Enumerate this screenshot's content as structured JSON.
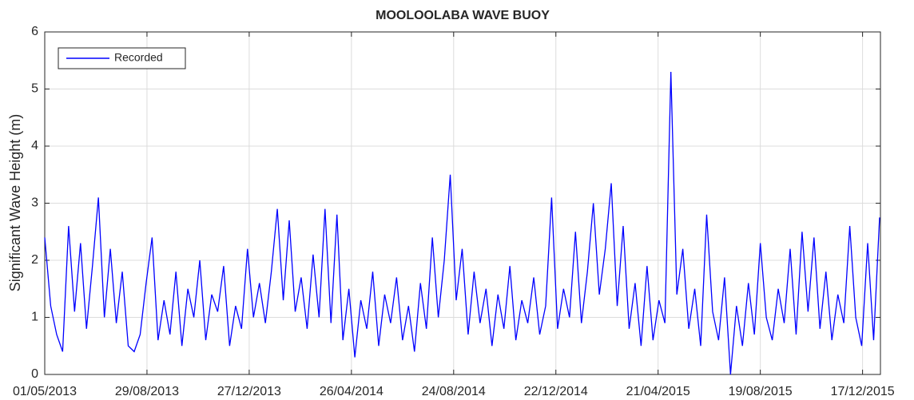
{
  "chart_data": {
    "type": "line",
    "title": "MOOLOOLABA WAVE BUOY",
    "y_label": "Significant Wave Height (m)",
    "x": [
      "2013-05-01",
      "2013-05-08",
      "2013-05-15",
      "2013-05-22",
      "2013-05-29",
      "2013-06-05",
      "2013-06-12",
      "2013-06-19",
      "2013-06-26",
      "2013-07-03",
      "2013-07-10",
      "2013-07-17",
      "2013-07-24",
      "2013-07-31",
      "2013-08-07",
      "2013-08-14",
      "2013-08-21",
      "2013-08-28",
      "2013-09-04",
      "2013-09-11",
      "2013-09-18",
      "2013-09-25",
      "2013-10-02",
      "2013-10-09",
      "2013-10-16",
      "2013-10-23",
      "2013-10-30",
      "2013-11-06",
      "2013-11-13",
      "2013-11-20",
      "2013-11-27",
      "2013-12-04",
      "2013-12-11",
      "2013-12-18",
      "2013-12-25",
      "2014-01-01",
      "2014-01-08",
      "2014-01-15",
      "2014-01-22",
      "2014-01-29",
      "2014-02-05",
      "2014-02-12",
      "2014-02-19",
      "2014-02-26",
      "2014-03-05",
      "2014-03-12",
      "2014-03-19",
      "2014-03-26",
      "2014-04-02",
      "2014-04-09",
      "2014-04-16",
      "2014-04-23",
      "2014-04-30",
      "2014-05-07",
      "2014-05-14",
      "2014-05-21",
      "2014-05-28",
      "2014-06-04",
      "2014-06-11",
      "2014-06-18",
      "2014-06-25",
      "2014-07-02",
      "2014-07-09",
      "2014-07-16",
      "2014-07-23",
      "2014-07-30",
      "2014-08-06",
      "2014-08-13",
      "2014-08-20",
      "2014-08-27",
      "2014-09-03",
      "2014-09-10",
      "2014-09-17",
      "2014-09-24",
      "2014-10-01",
      "2014-10-08",
      "2014-10-15",
      "2014-10-22",
      "2014-10-29",
      "2014-11-05",
      "2014-11-12",
      "2014-11-19",
      "2014-11-26",
      "2014-12-03",
      "2014-12-10",
      "2014-12-17",
      "2014-12-24",
      "2014-12-31",
      "2015-01-07",
      "2015-01-14",
      "2015-01-21",
      "2015-01-28",
      "2015-02-04",
      "2015-02-11",
      "2015-02-18",
      "2015-02-25",
      "2015-03-04",
      "2015-03-11",
      "2015-03-18",
      "2015-03-25",
      "2015-04-01",
      "2015-04-08",
      "2015-04-15",
      "2015-04-22",
      "2015-04-29",
      "2015-05-06",
      "2015-05-13",
      "2015-05-20",
      "2015-05-27",
      "2015-06-03",
      "2015-06-10",
      "2015-06-17",
      "2015-06-24",
      "2015-07-01",
      "2015-07-08",
      "2015-07-15",
      "2015-07-22",
      "2015-07-29",
      "2015-08-05",
      "2015-08-12",
      "2015-08-19",
      "2015-08-26",
      "2015-09-02",
      "2015-09-09",
      "2015-09-16",
      "2015-09-23",
      "2015-09-30",
      "2015-10-07",
      "2015-10-14",
      "2015-10-21",
      "2015-10-28",
      "2015-11-04",
      "2015-11-11",
      "2015-11-18",
      "2015-11-25",
      "2015-12-02",
      "2015-12-09",
      "2015-12-16",
      "2015-12-23",
      "2015-12-30",
      "2016-01-06"
    ],
    "series": [
      {
        "name": "Recorded",
        "color": "#0000ff",
        "values": [
          2.4,
          1.2,
          0.7,
          0.4,
          2.6,
          1.1,
          2.3,
          0.8,
          1.9,
          3.1,
          1.0,
          2.2,
          0.9,
          1.8,
          0.5,
          0.4,
          0.7,
          1.6,
          2.4,
          0.6,
          1.3,
          0.7,
          1.8,
          0.5,
          1.5,
          1.0,
          2.0,
          0.6,
          1.4,
          1.1,
          1.9,
          0.5,
          1.2,
          0.8,
          2.2,
          1.0,
          1.6,
          0.9,
          1.8,
          2.9,
          1.3,
          2.7,
          1.1,
          1.7,
          0.8,
          2.1,
          1.0,
          2.9,
          0.9,
          2.8,
          0.6,
          1.5,
          0.3,
          1.3,
          0.8,
          1.8,
          0.5,
          1.4,
          0.9,
          1.7,
          0.6,
          1.2,
          0.4,
          1.6,
          0.8,
          2.4,
          1.0,
          2.0,
          3.5,
          1.3,
          2.2,
          0.7,
          1.8,
          0.9,
          1.5,
          0.5,
          1.4,
          0.8,
          1.9,
          0.6,
          1.3,
          0.9,
          1.7,
          0.7,
          1.2,
          3.1,
          0.8,
          1.5,
          1.0,
          2.5,
          0.9,
          1.8,
          3.0,
          1.4,
          2.2,
          3.35,
          1.2,
          2.6,
          0.8,
          1.6,
          0.5,
          1.9,
          0.6,
          1.3,
          0.9,
          5.3,
          1.4,
          2.2,
          0.8,
          1.5,
          0.5,
          2.8,
          1.1,
          0.6,
          1.7,
          0.0,
          1.2,
          0.5,
          1.6,
          0.7,
          2.3,
          1.0,
          0.6,
          1.5,
          0.9,
          2.2,
          0.7,
          2.5,
          1.1,
          2.4,
          0.8,
          1.8,
          0.6,
          1.4,
          0.9,
          2.6,
          1.0,
          0.5,
          2.3,
          0.6,
          2.75
        ]
      }
    ],
    "xlim": [
      "2013-05-01",
      "2016-01-07"
    ],
    "xticks": [
      {
        "value": "2013-05-01",
        "label": "01/05/2013"
      },
      {
        "value": "2013-08-29",
        "label": "29/08/2013"
      },
      {
        "value": "2013-12-27",
        "label": "27/12/2013"
      },
      {
        "value": "2014-04-26",
        "label": "26/04/2014"
      },
      {
        "value": "2014-08-24",
        "label": "24/08/2014"
      },
      {
        "value": "2014-12-22",
        "label": "22/12/2014"
      },
      {
        "value": "2015-04-21",
        "label": "21/04/2015"
      },
      {
        "value": "2015-08-19",
        "label": "19/08/2015"
      },
      {
        "value": "2015-12-17",
        "label": "17/12/2015"
      }
    ],
    "ylim": [
      0,
      6
    ],
    "yticks": [
      0,
      1,
      2,
      3,
      4,
      5,
      6
    ],
    "grid": true,
    "legend": "upper left"
  }
}
